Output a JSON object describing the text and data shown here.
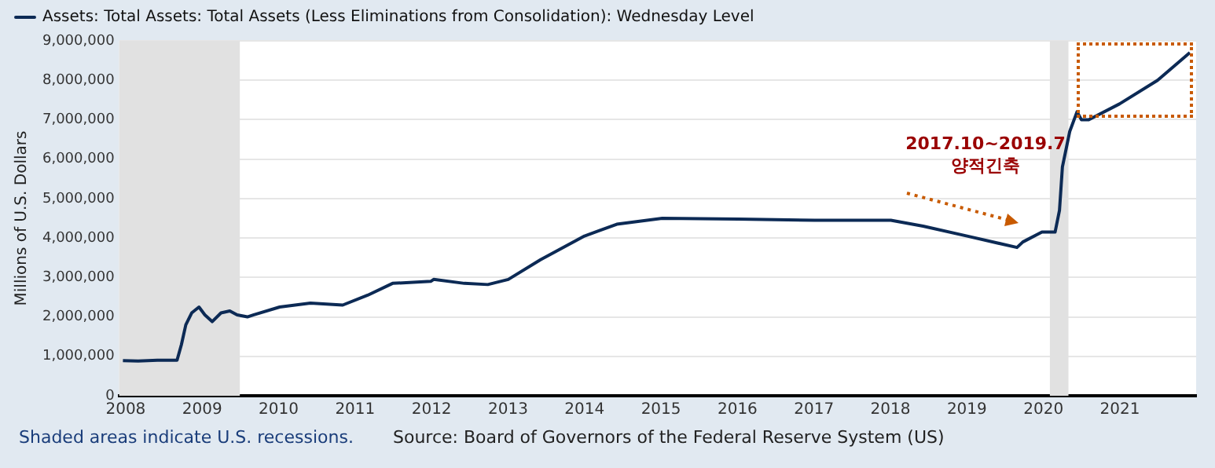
{
  "chart_data": {
    "type": "line",
    "ylabel": "Millions of U.S. Dollars",
    "legend": "top left",
    "grid": "y",
    "marker": "none",
    "line_style": "solid",
    "xlim": [
      "2007-12-01",
      "2021-12-31"
    ],
    "xticks": [
      "2008",
      "2009",
      "2010",
      "2011",
      "2012",
      "2013",
      "2014",
      "2015",
      "2016",
      "2017",
      "2018",
      "2019",
      "2020",
      "2021"
    ],
    "ylim": [
      0,
      9000000
    ],
    "yticks": [
      {
        "value": 0,
        "label": "0"
      },
      {
        "value": 1000000,
        "label": "1,000,000"
      },
      {
        "value": 2000000,
        "label": "2,000,000"
      },
      {
        "value": 3000000,
        "label": "3,000,000"
      },
      {
        "value": 4000000,
        "label": "4,000,000"
      },
      {
        "value": 5000000,
        "label": "5,000,000"
      },
      {
        "value": 6000000,
        "label": "6,000,000"
      },
      {
        "value": 7000000,
        "label": "7,000,000"
      },
      {
        "value": 8000000,
        "label": "8,000,000"
      },
      {
        "value": 9000000,
        "label": "9,000,000"
      }
    ],
    "bands": [
      {
        "axis": "x",
        "from": "2007-12-01",
        "to": "2009-06-30",
        "color": "#e1e1e1"
      },
      {
        "axis": "x",
        "from": "2020-02-01",
        "to": "2020-04-30",
        "color": "#e1e1e1"
      }
    ],
    "series": [
      {
        "name": "Assets: Total Assets: Total Assets (Less Eliminations from Consolidation): Wednesday Level",
        "color": "#0c2a55",
        "x": [
          "2007-12-19",
          "2008-03-01",
          "2008-06-01",
          "2008-09-03",
          "2008-09-24",
          "2008-10-15",
          "2008-11-12",
          "2008-12-17",
          "2009-01-14",
          "2009-02-18",
          "2009-04-01",
          "2009-05-13",
          "2009-06-17",
          "2009-08-05",
          "2009-09-02",
          "2010-01-06",
          "2010-06-02",
          "2010-11-03",
          "2011-03-02",
          "2011-06-29",
          "2011-12-28",
          "2012-01-11",
          "2012-06-06",
          "2012-09-26",
          "2013-01-02",
          "2013-06-05",
          "2014-01-01",
          "2014-06-04",
          "2015-01-07",
          "2016-01-06",
          "2017-01-04",
          "2018-01-03",
          "2018-06-06",
          "2019-01-02",
          "2019-08-28",
          "2019-09-25",
          "2019-12-25",
          "2020-02-26",
          "2020-03-18",
          "2020-04-01",
          "2020-05-06",
          "2020-06-10",
          "2020-07-01",
          "2020-08-05",
          "2020-12-30",
          "2021-06-30",
          "2021-12-01"
        ],
        "values": [
          890000,
          880000,
          900000,
          900000,
          1300000,
          1800000,
          2100000,
          2250000,
          2050000,
          1880000,
          2100000,
          2150000,
          2050000,
          2000000,
          2050000,
          2250000,
          2350000,
          2300000,
          2550000,
          2850000,
          2900000,
          2950000,
          2850000,
          2820000,
          2950000,
          3450000,
          4050000,
          4350000,
          4500000,
          4480000,
          4450000,
          4450000,
          4300000,
          4050000,
          3760000,
          3900000,
          4150000,
          4150000,
          4700000,
          5800000,
          6700000,
          7200000,
          7000000,
          7000000,
          7400000,
          8000000,
          8700000
        ]
      }
    ],
    "annotations": [
      "2017.10~2019.7",
      "양적긴축",
      "Shaded areas indicate U.S. recessions.",
      "Source: Board of Governors of the Federal Reserve System (US)"
    ]
  }
}
